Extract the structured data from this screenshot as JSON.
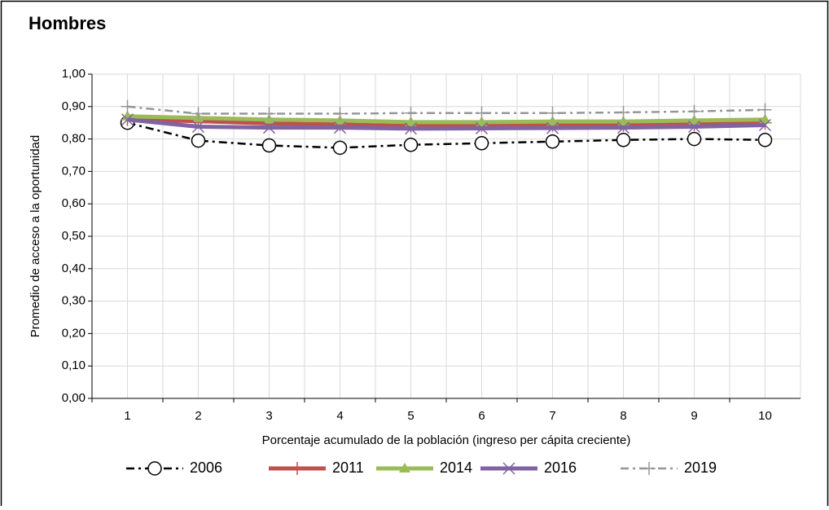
{
  "chart_data": {
    "type": "line",
    "title": "Hombres",
    "x_label": "Porcentaje acumulado de la población (ingreso per cápita creciente)",
    "y_label": "Promedio de acceso a la oportunidad",
    "categories": [
      "1",
      "2",
      "3",
      "4",
      "5",
      "6",
      "7",
      "8",
      "9",
      "10"
    ],
    "ylim": [
      0,
      1
    ],
    "yticks": [
      {
        "value": 0,
        "label": "0,00"
      },
      {
        "value": 0.1,
        "label": "0,10"
      },
      {
        "value": 0.2,
        "label": "0,20"
      },
      {
        "value": 0.3,
        "label": "0,30"
      },
      {
        "value": 0.4,
        "label": "0,40"
      },
      {
        "value": 0.5,
        "label": "0,50"
      },
      {
        "value": 0.6,
        "label": "0,60"
      },
      {
        "value": 0.7,
        "label": "0,70"
      },
      {
        "value": 0.8,
        "label": "0,80"
      },
      {
        "value": 0.9,
        "label": "0,90"
      },
      {
        "value": 1,
        "label": "1,00"
      }
    ],
    "grid": true,
    "legend": "bottom",
    "series": [
      {
        "name": "2006",
        "color": "#000000",
        "dash": "dashdot",
        "marker": "circle",
        "width": 2.5,
        "values": [
          0.85,
          0.795,
          0.78,
          0.773,
          0.782,
          0.787,
          0.792,
          0.797,
          0.8,
          0.797
        ]
      },
      {
        "name": "2011",
        "color": "#c0504d",
        "dash": "solid",
        "marker": "plus",
        "width": 5,
        "values": [
          0.86,
          0.855,
          0.848,
          0.845,
          0.84,
          0.842,
          0.843,
          0.843,
          0.845,
          0.85
        ]
      },
      {
        "name": "2014",
        "color": "#9bbb59",
        "dash": "solid",
        "marker": "triangle",
        "width": 5,
        "values": [
          0.87,
          0.865,
          0.86,
          0.857,
          0.852,
          0.852,
          0.854,
          0.854,
          0.857,
          0.86
        ]
      },
      {
        "name": "2016",
        "color": "#8064a2",
        "dash": "solid",
        "marker": "x",
        "width": 5,
        "values": [
          0.86,
          0.838,
          0.835,
          0.835,
          0.832,
          0.833,
          0.834,
          0.835,
          0.838,
          0.843
        ]
      },
      {
        "name": "2019",
        "color": "#969696",
        "dash": "dashdot",
        "marker": "plus",
        "width": 2.5,
        "values": [
          0.9,
          0.878,
          0.878,
          0.878,
          0.88,
          0.88,
          0.88,
          0.882,
          0.885,
          0.89
        ]
      }
    ]
  }
}
